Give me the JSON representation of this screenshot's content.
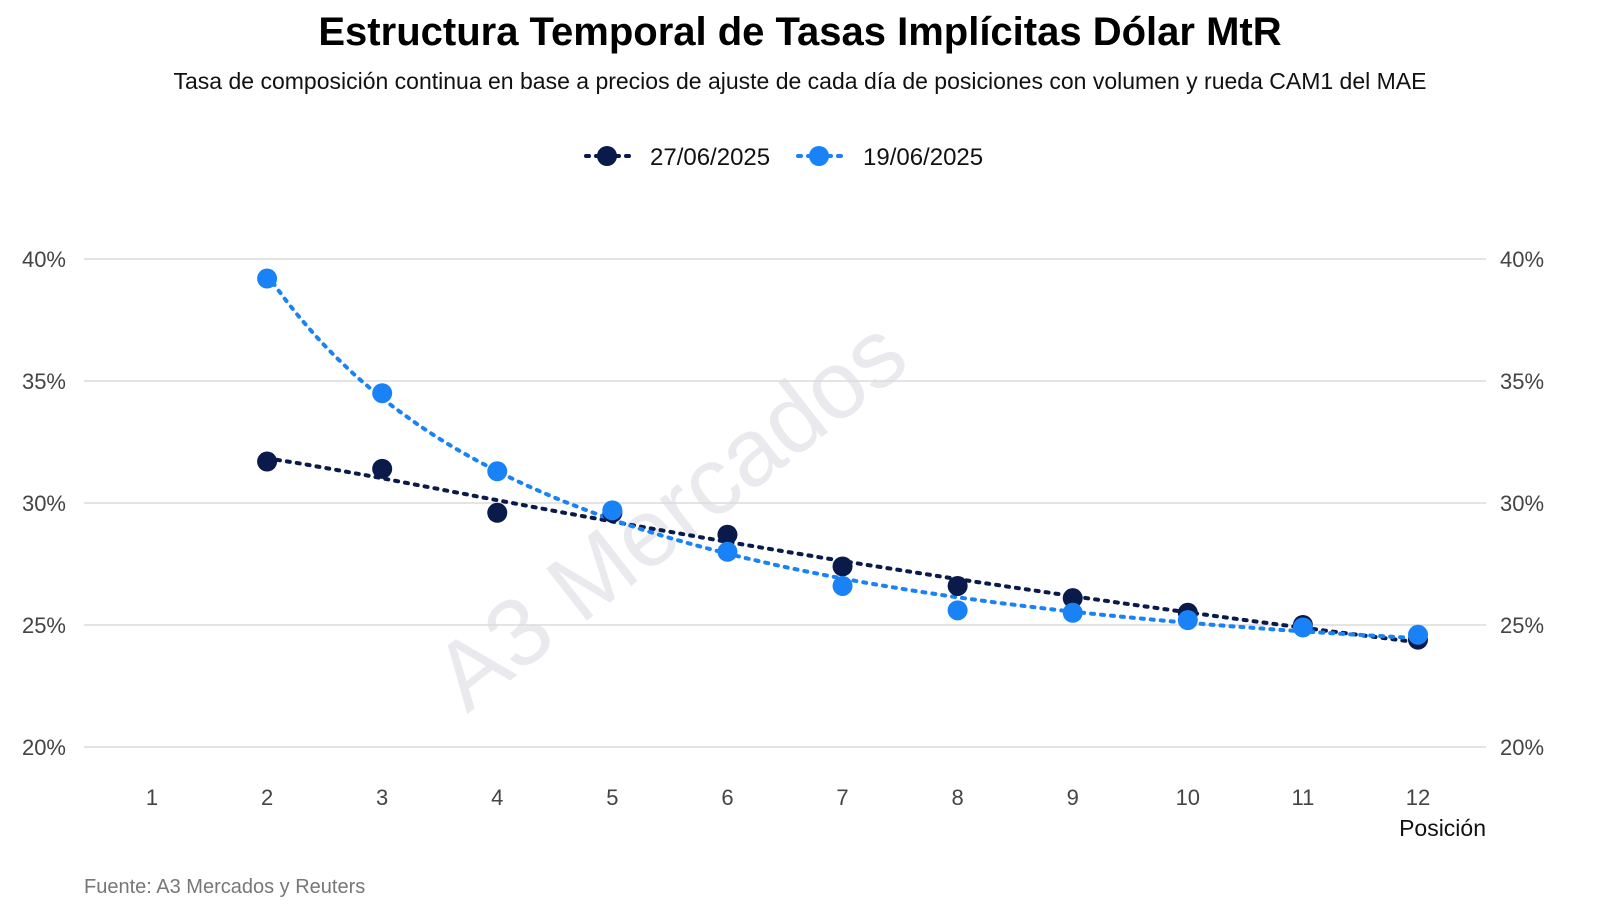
{
  "title": "Estructura Temporal de Tasas Implícitas Dólar MtR",
  "subtitle": "Tasa de composición continua en base a precios de ajuste de cada día de posiciones con volumen y rueda CAM1 del MAE",
  "source": "Fuente: A3 Mercados y Reuters",
  "watermark": "A3 Mercados",
  "chart_data": {
    "type": "scatter",
    "title": "Estructura Temporal de Tasas Implícitas Dólar MtR",
    "xlabel": "Posición",
    "ylabel": "",
    "x_ticks": [
      "1",
      "2",
      "3",
      "4",
      "5",
      "6",
      "7",
      "8",
      "9",
      "10",
      "11",
      "12"
    ],
    "xlim": [
      1,
      12
    ],
    "y_ticks": [
      "20%",
      "25%",
      "30%",
      "35%",
      "40%"
    ],
    "ylim": [
      20,
      40
    ],
    "grid": true,
    "legend_position": "top-center",
    "trendline": "dotted",
    "series": [
      {
        "name": "27/06/2025",
        "color": "#0a1a4a",
        "x": [
          2,
          3,
          4,
          5,
          6,
          7,
          8,
          9,
          10,
          11,
          12
        ],
        "values": [
          31.7,
          31.4,
          29.6,
          29.6,
          28.7,
          27.4,
          26.6,
          26.1,
          25.5,
          25.0,
          24.4
        ]
      },
      {
        "name": "19/06/2025",
        "color": "#1a82f7",
        "x": [
          2,
          3,
          4,
          5,
          6,
          7,
          8,
          9,
          10,
          11,
          12
        ],
        "values": [
          39.2,
          34.5,
          31.3,
          29.7,
          28.0,
          26.6,
          25.6,
          25.5,
          25.2,
          24.9,
          24.6
        ]
      }
    ]
  }
}
